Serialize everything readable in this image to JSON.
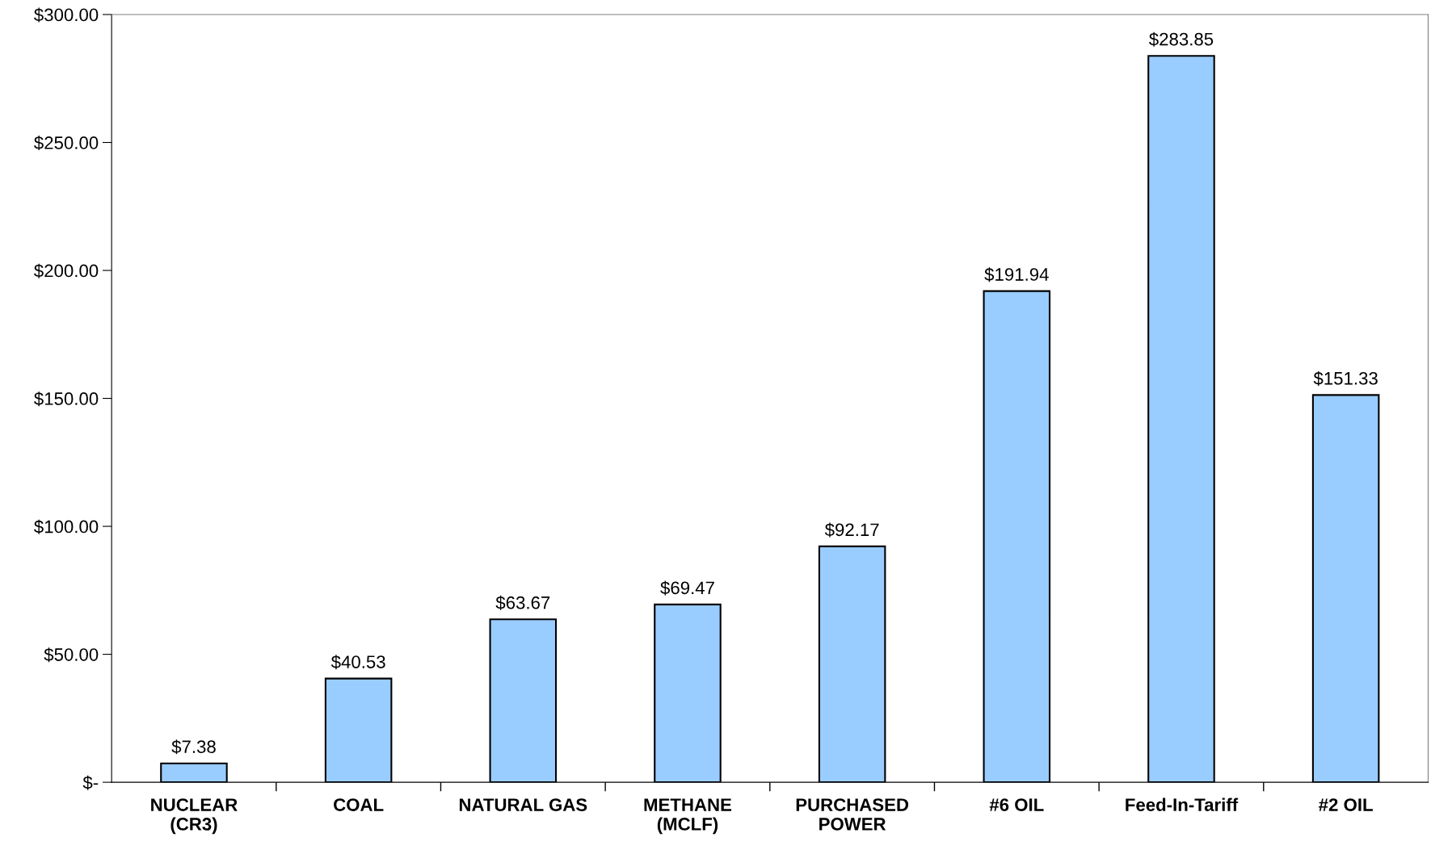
{
  "chart_data": {
    "type": "bar",
    "categories": [
      "NUCLEAR\n(CR3)",
      "COAL",
      "NATURAL GAS",
      "METHANE\n(MCLF)",
      "PURCHASED\nPOWER",
      "#6 OIL",
      "Feed-In-Tariff",
      "#2 OIL"
    ],
    "values": [
      7.38,
      40.53,
      63.67,
      69.47,
      92.17,
      191.94,
      283.85,
      151.33
    ],
    "value_labels": [
      "$7.38",
      "$40.53",
      "$63.67",
      "$69.47",
      "$92.17",
      "$191.94",
      "$283.85",
      "$151.33"
    ],
    "color": "#99ccff",
    "ylim": [
      0,
      300
    ],
    "yticks": [
      {
        "value": 0,
        "label": "$-"
      },
      {
        "value": 50,
        "label": "$50.00"
      },
      {
        "value": 100,
        "label": "$100.00"
      },
      {
        "value": 150,
        "label": "$150.00"
      },
      {
        "value": 200,
        "label": "$200.00"
      },
      {
        "value": 250,
        "label": "$250.00"
      },
      {
        "value": 300,
        "label": "$300.00"
      }
    ],
    "grid": false,
    "legend": false
  }
}
